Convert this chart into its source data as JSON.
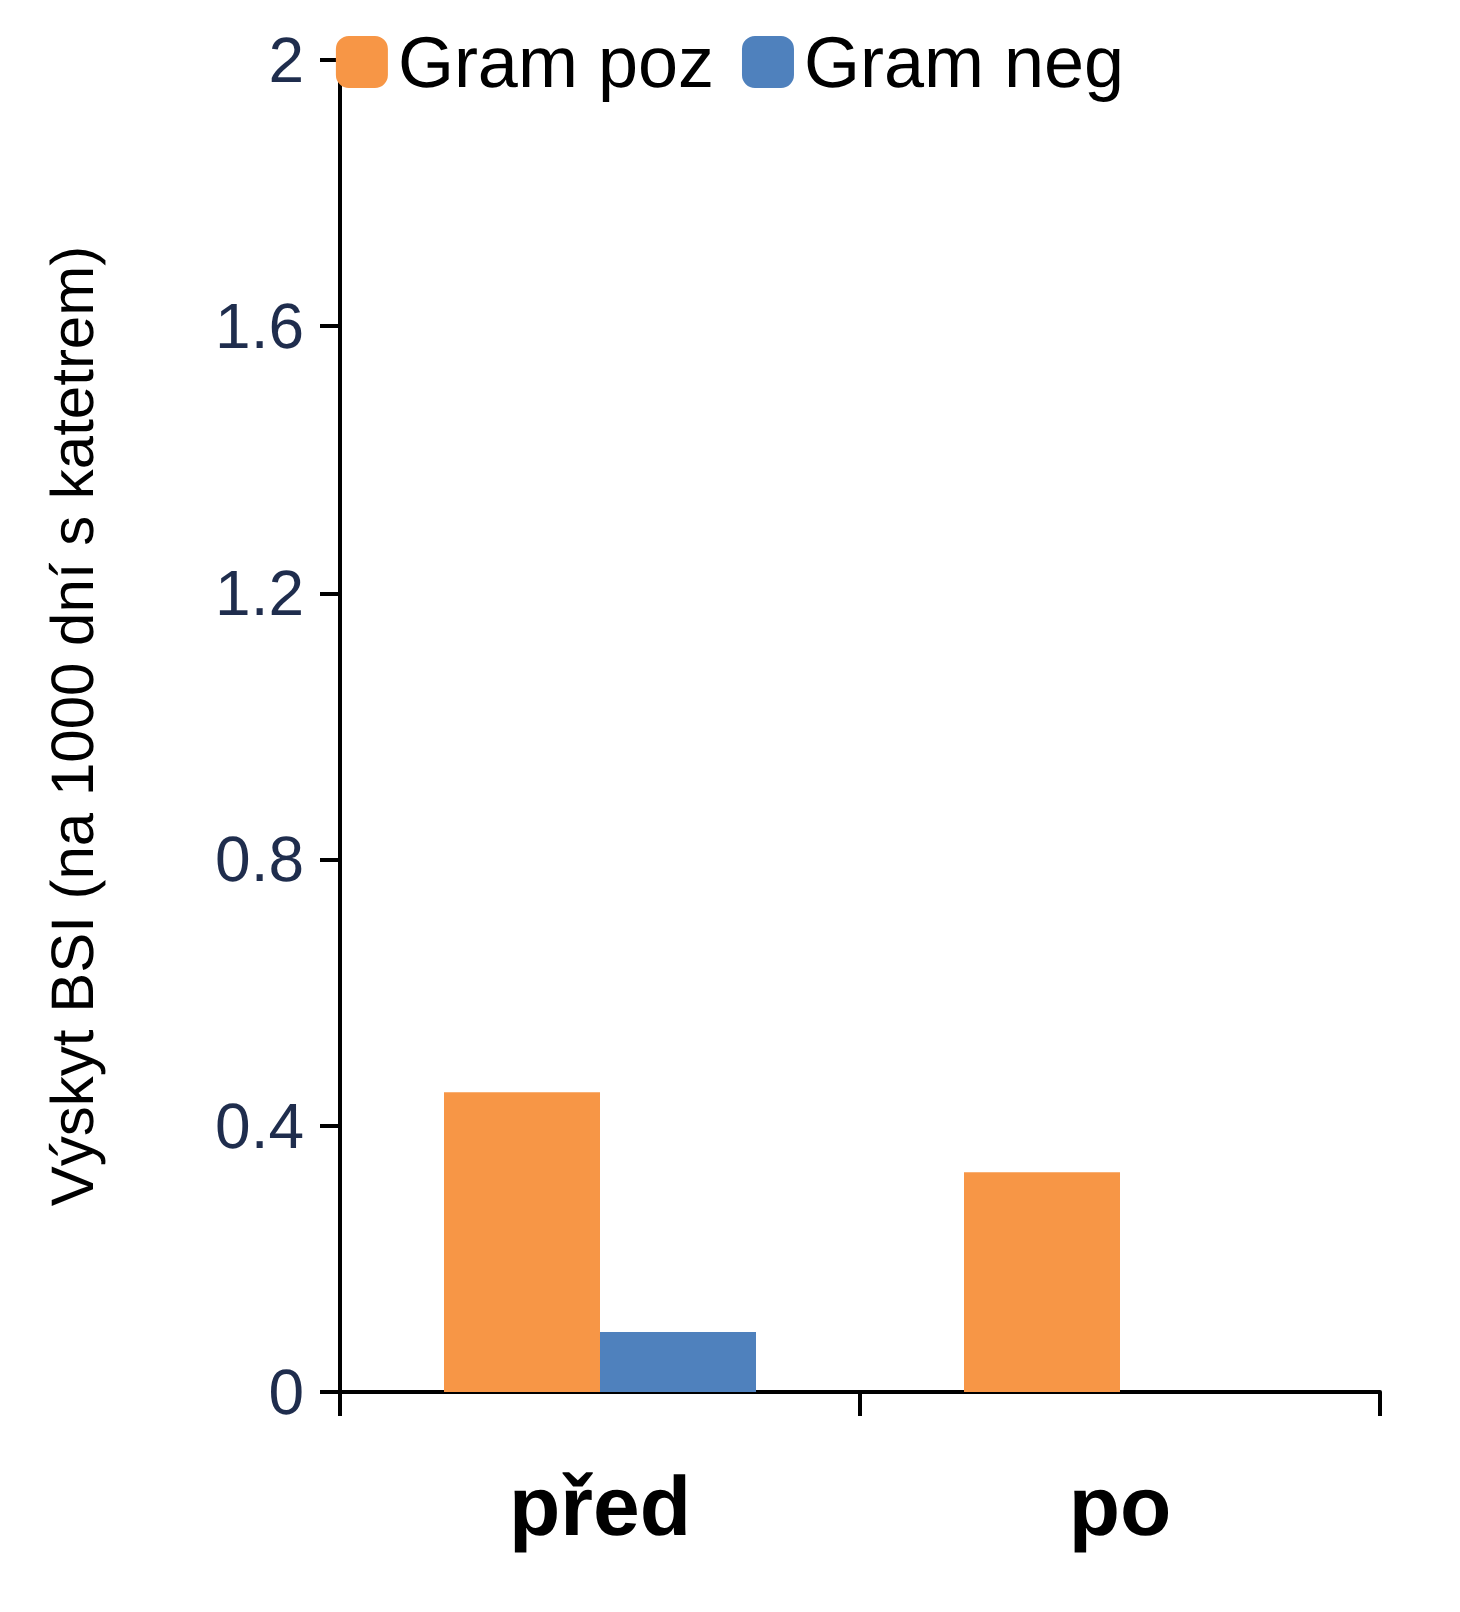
{
  "chart_data": {
    "type": "bar",
    "ylabel": "Výskyt BSI (na 1000 dní s katetrem)",
    "categories": [
      "před",
      "po"
    ],
    "series": [
      {
        "name": "Gram poz",
        "color": "#f79646",
        "values": [
          0.45,
          0.33
        ]
      },
      {
        "name": "Gram neg",
        "color": "#4f81bd",
        "values": [
          0.09,
          0
        ]
      }
    ],
    "ylim": [
      0,
      2
    ],
    "yticks": [
      0,
      0.4,
      0.8,
      1.2,
      1.6,
      2
    ],
    "grid": false,
    "legend": "top"
  }
}
